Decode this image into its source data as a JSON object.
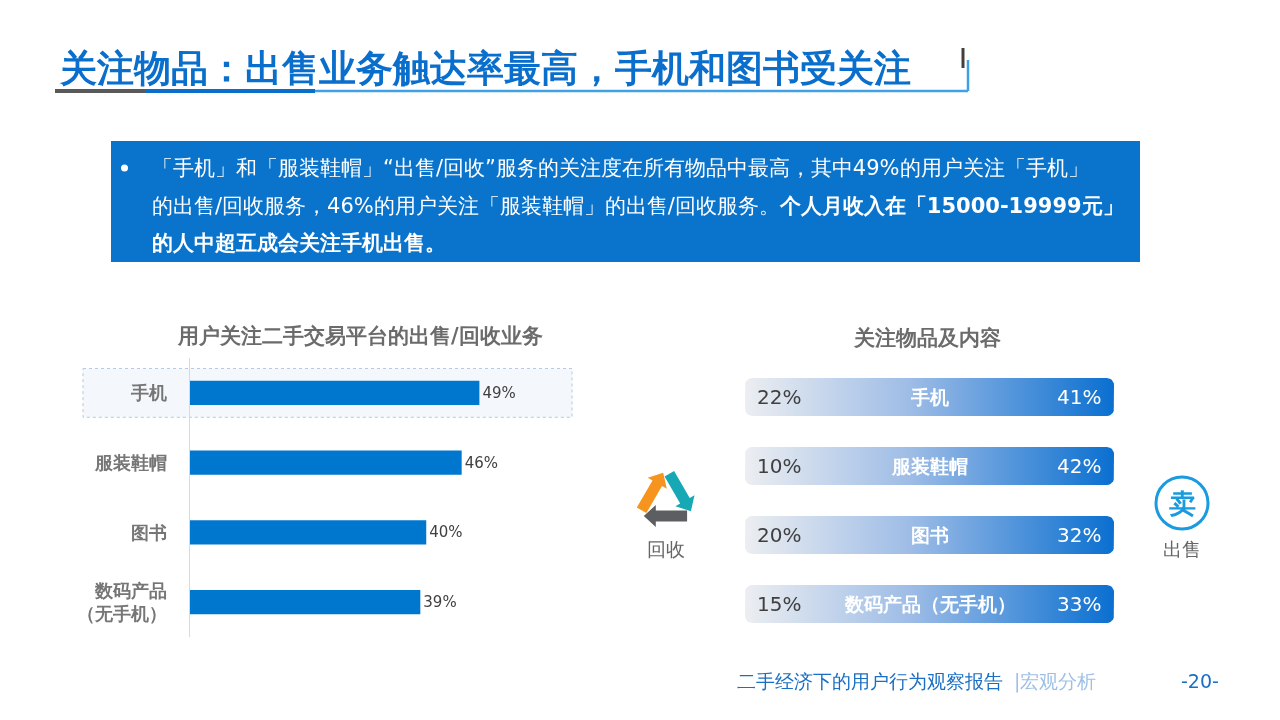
{
  "chart_data": [
    {
      "type": "other",
      "title": "关注物品：出售业务触达率最高，手机和图书受关注",
      "subtitle": "「手机」和「服装鞋帽」“出售/回收”服务的关注度在所有物品中最高，其中49%的用户关注「手机」的出售/回收服务，46%的用户关注「服装鞋帽」的出售/回收服务。个人月收入在「15000-19999元」的人中超五成会关注手机出售。"
    },
    {
      "type": "bar",
      "orientation": "horizontal",
      "title": "用户关注二手交易平台的出售/回收业务",
      "categories": [
        "手机",
        "服装鞋帽",
        "图书",
        "数码产品（无手机）"
      ],
      "values": [
        49,
        46,
        40,
        39
      ],
      "value_labels": [
        "49%",
        "46%",
        "40%",
        "39%"
      ],
      "color": "#0077cf",
      "bands": [
        {
          "axis": "y",
          "from": "手机",
          "to": "手机",
          "color": "#f4f8fc"
        }
      ]
    },
    {
      "type": "other",
      "title": "关注物品及内容",
      "categories": [
        "手机",
        "服装鞋帽",
        "图书",
        "数码产品（无手机）"
      ],
      "series": [
        {
          "name": "回收",
          "values": [
            22,
            10,
            20,
            15
          ],
          "value_labels": [
            "22%",
            "10%",
            "20%",
            "15%"
          ]
        },
        {
          "name": "出售",
          "values": [
            41,
            42,
            32,
            33
          ],
          "value_labels": [
            "41%",
            "42%",
            "32%",
            "33%"
          ]
        }
      ],
      "annotations": [
        "卖",
        "二手经济下的用户行为观察报告",
        "|宏观分析",
        "-20-"
      ]
    }
  ]
}
